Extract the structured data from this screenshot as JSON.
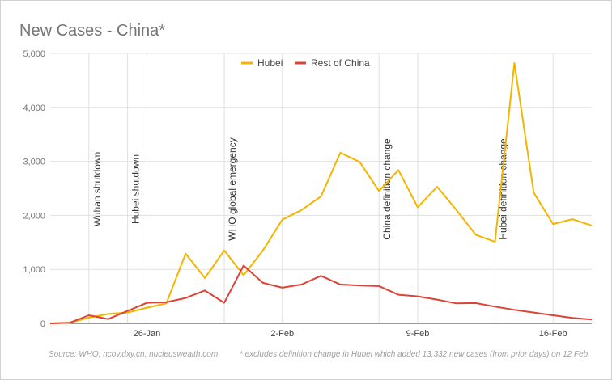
{
  "chart_data": {
    "type": "line",
    "title": "New Cases - China*",
    "categories": [
      null,
      null,
      null,
      null,
      null,
      "26-Jan",
      null,
      null,
      null,
      null,
      null,
      null,
      "2-Feb",
      null,
      null,
      null,
      null,
      null,
      null,
      "9-Feb",
      null,
      null,
      null,
      null,
      null,
      null,
      "16-Feb",
      null,
      null
    ],
    "series": [
      {
        "name": "Hubei",
        "color": "#f4b400",
        "values": [
          0,
          10,
          105,
          175,
          200,
          290,
          370,
          1290,
          840,
          1350,
          890,
          1350,
          1920,
          2100,
          2350,
          3160,
          2990,
          2450,
          2840,
          2150,
          2530,
          2100,
          1640,
          1510,
          4820,
          2420,
          1840,
          1930,
          1810
        ]
      },
      {
        "name": "Rest of China",
        "color": "#db4437",
        "values": [
          0,
          10,
          150,
          80,
          230,
          380,
          390,
          470,
          610,
          380,
          1070,
          750,
          660,
          720,
          880,
          720,
          700,
          690,
          530,
          500,
          440,
          370,
          375,
          310,
          250,
          200,
          150,
          100,
          70
        ]
      }
    ],
    "ylim": [
      0,
      5000
    ],
    "yticks": [
      0,
      {
        "value": 1000,
        "label": "1,000"
      },
      {
        "value": 2000,
        "label": "2,000"
      },
      {
        "value": 3000,
        "label": "3,000"
      },
      {
        "value": 4000,
        "label": "4,000"
      },
      {
        "value": 5000,
        "label": "5,000"
      }
    ],
    "grid": true,
    "legend": "top",
    "annotations": [
      {
        "text": "Wuhan shutdown",
        "index": 2
      },
      {
        "text": "Hubei shutdown",
        "index": 4
      },
      {
        "text": "WHO global emergency",
        "index": 9
      },
      {
        "text": "China definition change",
        "index": 17
      },
      {
        "text": "Hubei definition change",
        "index": 23
      }
    ],
    "source": "Source: WHO, ncov.dxy.cn, nucleuswealth.com",
    "note": "* excludes definition change in Hubei which added 13,332 new cases (from prior days) on 12 Feb."
  }
}
